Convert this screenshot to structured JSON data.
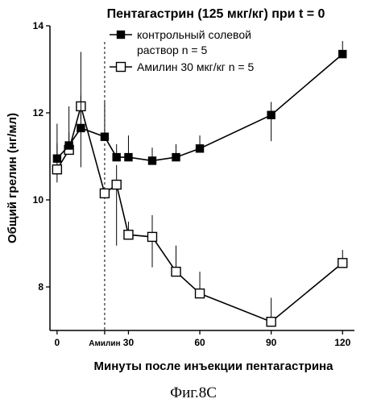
{
  "chart_data": {
    "type": "line",
    "title": "Пентагастрин (125 мкг/кг) при t = 0",
    "xlabel": "Минуты после инъекции пентагастрина",
    "ylabel": "Общий грелин (нг/мл)",
    "caption": "Фиг.8С",
    "xlim": [
      -3,
      125
    ],
    "ylim": [
      7,
      14
    ],
    "x_ticks": [
      {
        "value": 0,
        "label": "0"
      },
      {
        "value": 30,
        "label": "30"
      },
      {
        "value": 60,
        "label": "60"
      },
      {
        "value": 90,
        "label": "90"
      },
      {
        "value": 120,
        "label": "120"
      }
    ],
    "y_ticks": [
      {
        "value": 8,
        "label": "8"
      },
      {
        "value": 10,
        "label": "10"
      },
      {
        "value": 12,
        "label": "12"
      },
      {
        "value": 14,
        "label": "14"
      }
    ],
    "annotation": {
      "x": 20,
      "label": "Амилин"
    },
    "series": [
      {
        "name": "контрольный солевой раствор n = 5",
        "legend_lines": [
          "контрольный солевой",
          "раствор n = 5"
        ],
        "marker": "filled-square",
        "x": [
          0,
          5,
          10,
          20,
          25,
          30,
          40,
          50,
          60,
          90,
          120
        ],
        "y": [
          10.95,
          11.25,
          11.65,
          11.45,
          10.98,
          10.98,
          10.9,
          10.98,
          11.18,
          11.95,
          13.35
        ],
        "error_up": [
          0.8,
          0.9,
          1.75,
          0.8,
          0.3,
          0.5,
          0.3,
          0.3,
          0.3,
          0.3,
          0.3
        ],
        "error_down": [
          0.0,
          0.0,
          0.9,
          0.0,
          0.0,
          0.0,
          0.0,
          0.0,
          0.0,
          0.6,
          0.0
        ]
      },
      {
        "name": "Амилин 30 мкг/кг n = 5",
        "legend_lines": [
          "Амилин 30 мкг/кг n = 5"
        ],
        "marker": "open-square",
        "x": [
          0,
          5,
          10,
          20,
          25,
          30,
          40,
          50,
          60,
          90,
          120
        ],
        "y": [
          10.7,
          11.15,
          12.15,
          10.15,
          10.35,
          9.2,
          9.15,
          8.35,
          7.85,
          7.2,
          8.55
        ],
        "error_up": [
          0.6,
          0.4,
          0.25,
          0.0,
          0.45,
          0.3,
          0.5,
          0.6,
          0.5,
          0.55,
          0.3
        ],
        "error_down": [
          0.3,
          0.0,
          0.3,
          0.0,
          1.4,
          0.0,
          0.7,
          0.0,
          0.0,
          0.0,
          0.0
        ]
      }
    ]
  }
}
